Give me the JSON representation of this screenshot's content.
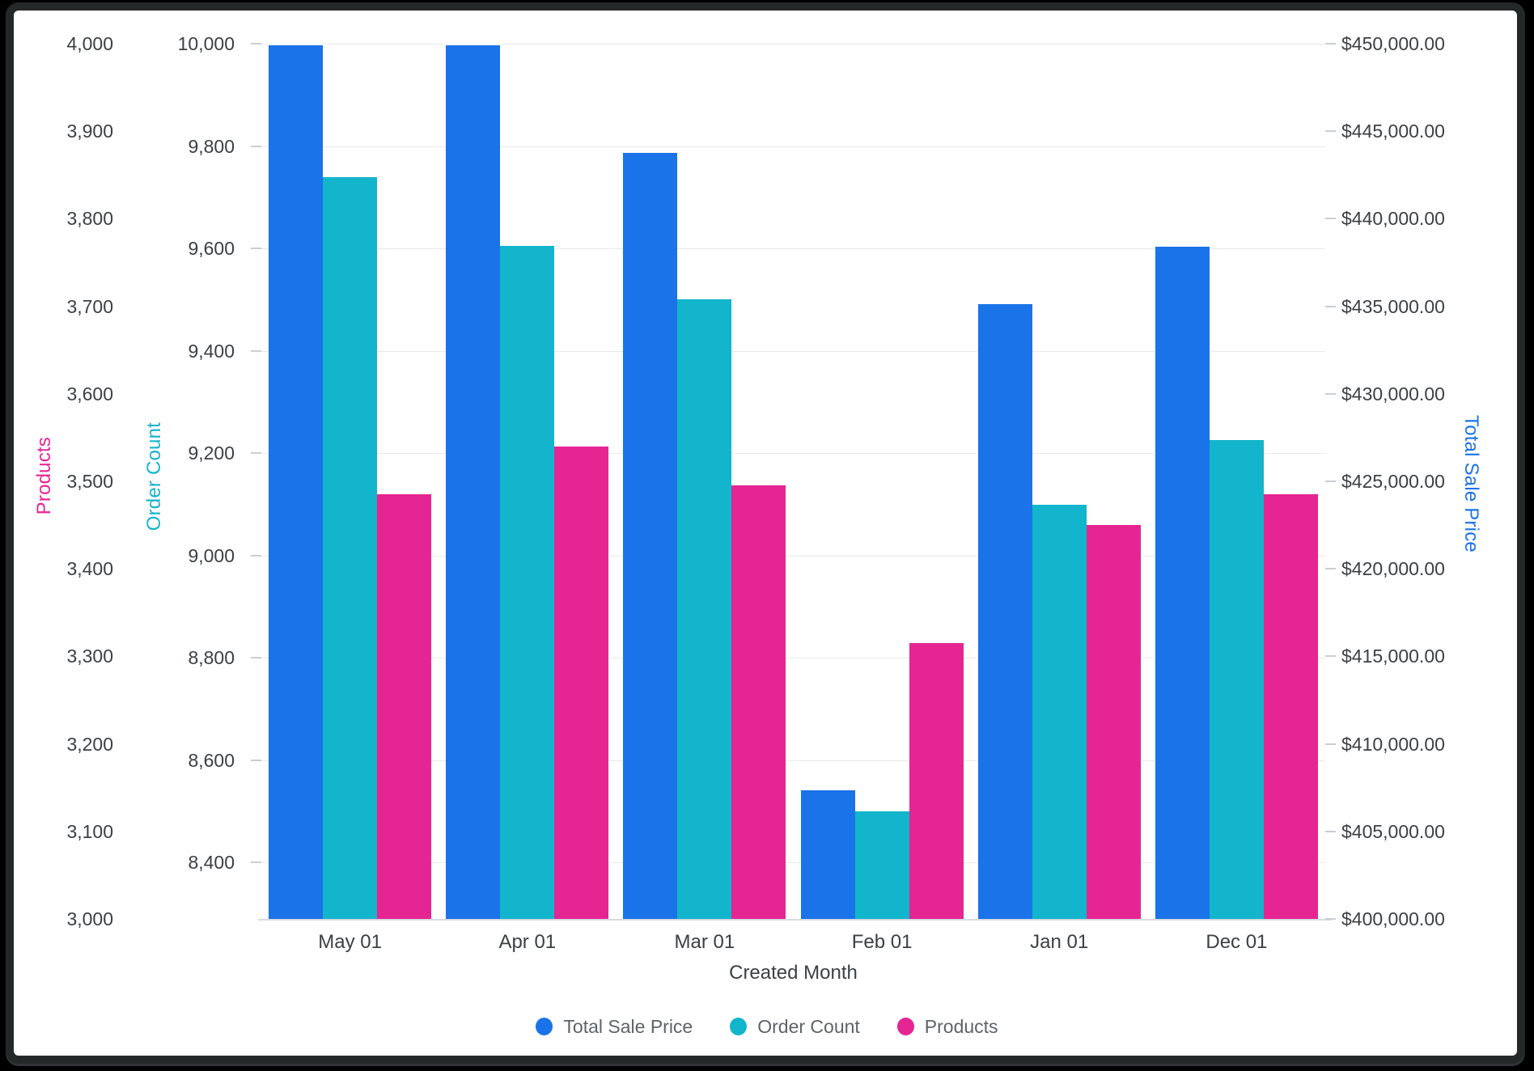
{
  "window": {
    "background": "#ffffff",
    "frame_color": "#242829"
  },
  "chart_data": {
    "type": "bar",
    "title": "",
    "x_axis": {
      "title": "Created Month",
      "categories": [
        "May 01",
        "Apr 01",
        "Mar 01",
        "Feb 01",
        "Jan 01",
        "Dec 01"
      ]
    },
    "y_axes": [
      {
        "name": "Products",
        "side": "left-outer",
        "color": "#E52592",
        "min": 3000,
        "max": 4000,
        "ticks": [
          {
            "v": 4000,
            "label": "4,000"
          },
          {
            "v": 3900,
            "label": "3,900"
          },
          {
            "v": 3800,
            "label": "3,800"
          },
          {
            "v": 3700,
            "label": "3,700"
          },
          {
            "v": 3600,
            "label": "3,600"
          },
          {
            "v": 3500,
            "label": "3,500"
          },
          {
            "v": 3400,
            "label": "3,400"
          },
          {
            "v": 3300,
            "label": "3,300"
          },
          {
            "v": 3200,
            "label": "3,200"
          },
          {
            "v": 3100,
            "label": "3,100"
          },
          {
            "v": 3000,
            "label": "3,000"
          }
        ],
        "gridlines": false
      },
      {
        "name": "Order Count",
        "side": "left-inner",
        "color": "#12B5CB",
        "min": 8290,
        "max": 10000,
        "ticks": [
          {
            "v": 10000,
            "label": "10,000"
          },
          {
            "v": 9800,
            "label": "9,800"
          },
          {
            "v": 9600,
            "label": "9,600"
          },
          {
            "v": 9400,
            "label": "9,400"
          },
          {
            "v": 9200,
            "label": "9,200"
          },
          {
            "v": 9000,
            "label": "9,000"
          },
          {
            "v": 8800,
            "label": "8,800"
          },
          {
            "v": 8600,
            "label": "8,600"
          },
          {
            "v": 8400,
            "label": "8,400"
          }
        ],
        "gridlines": true
      },
      {
        "name": "Total Sale Price",
        "side": "right",
        "color": "#1A73E8",
        "min": 400000,
        "max": 450000,
        "ticks": [
          {
            "v": 450000,
            "label": "$450,000.00"
          },
          {
            "v": 445000,
            "label": "$445,000.00"
          },
          {
            "v": 440000,
            "label": "$440,000.00"
          },
          {
            "v": 435000,
            "label": "$435,000.00"
          },
          {
            "v": 430000,
            "label": "$430,000.00"
          },
          {
            "v": 425000,
            "label": "$425,000.00"
          },
          {
            "v": 420000,
            "label": "$420,000.00"
          },
          {
            "v": 415000,
            "label": "$415,000.00"
          },
          {
            "v": 410000,
            "label": "$410,000.00"
          },
          {
            "v": 405000,
            "label": "$405,000.00"
          },
          {
            "v": 400000,
            "label": "$400,000.00"
          }
        ],
        "gridlines": false
      }
    ],
    "series": [
      {
        "name": "Total Sale Price",
        "axis": 2,
        "color": "#1A73E8",
        "values": [
          449900,
          449900,
          443750,
          407350,
          435100,
          438400
        ]
      },
      {
        "name": "Order Count",
        "axis": 1,
        "color": "#12B5CB",
        "values": [
          9740,
          9605,
          9500,
          8500,
          9100,
          9225
        ]
      },
      {
        "name": "Products",
        "axis": 0,
        "color": "#E52592",
        "values": [
          3485,
          3540,
          3495,
          3315,
          3450,
          3485
        ]
      }
    ],
    "legend": {
      "position": "bottom-center",
      "items": [
        "Total Sale Price",
        "Order Count",
        "Products"
      ]
    },
    "grid_on": true
  }
}
